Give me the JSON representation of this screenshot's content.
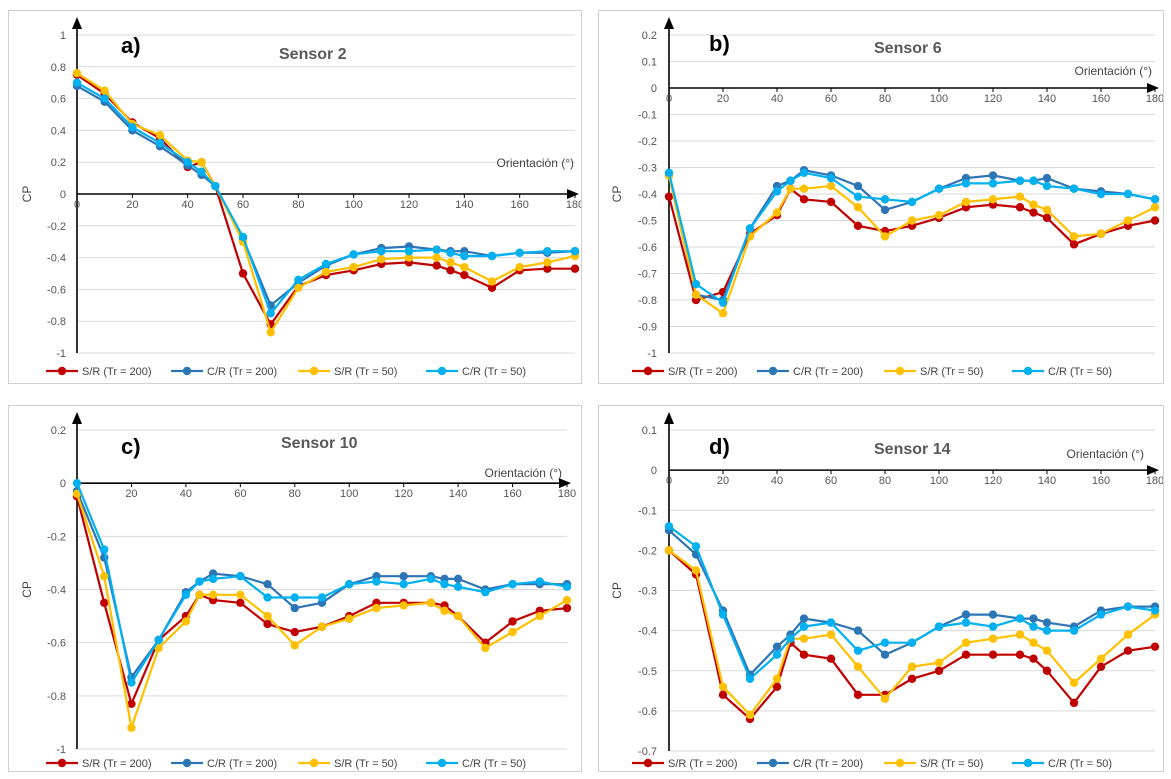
{
  "colors": {
    "S/R (Tr = 200)": "#C00000",
    "C/R (Tr = 200)": "#2E75B6",
    "S/R (Tr = 50)": "#FFC000",
    "C/R (Tr = 50)": "#00B0F0"
  },
  "chart_data": [
    {
      "type": "line",
      "panel_label": "a)",
      "title": "Sensor 2",
      "xlabel": "Orientación (°)",
      "ylabel": "CP",
      "xlim": [
        0,
        180
      ],
      "ylim": [
        -1,
        1
      ],
      "x_ticks": [
        0,
        20,
        40,
        60,
        80,
        100,
        120,
        140,
        160,
        180
      ],
      "y_ticks": [
        -1,
        -0.8,
        -0.6,
        -0.4,
        -0.2,
        0,
        0.2,
        0.4,
        0.6,
        0.8,
        1
      ],
      "y_tick_labels": [
        "-1",
        "-0.8",
        "-0.6",
        "-0.4",
        "-0.2",
        "0",
        "0.2",
        "0.4",
        "0.6",
        "0.8",
        "1"
      ],
      "grid": "horizontal",
      "legend": "bottom",
      "x": [
        0,
        10,
        20,
        30,
        40,
        45,
        50,
        60,
        70,
        80,
        90,
        100,
        110,
        120,
        130,
        135,
        140,
        150,
        160,
        170,
        180
      ],
      "series": [
        {
          "name": "S/R (Tr = 200)",
          "values": [
            0.75,
            0.63,
            0.45,
            0.35,
            0.17,
            0.2,
            0.05,
            -0.5,
            -0.82,
            -0.58,
            -0.51,
            -0.48,
            -0.44,
            -0.43,
            -0.45,
            -0.48,
            -0.51,
            -0.59,
            -0.48,
            -0.47,
            -0.47
          ]
        },
        {
          "name": "C/R (Tr = 200)",
          "values": [
            0.68,
            0.58,
            0.4,
            0.3,
            0.18,
            0.12,
            0.05,
            -0.28,
            -0.7,
            -0.56,
            -0.45,
            -0.38,
            -0.34,
            -0.33,
            -0.35,
            -0.36,
            -0.36,
            -0.39,
            -0.37,
            -0.37,
            -0.36
          ]
        },
        {
          "name": "S/R (Tr = 50)",
          "values": [
            0.76,
            0.65,
            0.44,
            0.37,
            0.21,
            0.2,
            0.05,
            -0.3,
            -0.87,
            -0.59,
            -0.49,
            -0.46,
            -0.41,
            -0.4,
            -0.4,
            -0.43,
            -0.46,
            -0.55,
            -0.46,
            -0.43,
            -0.39
          ]
        },
        {
          "name": "C/R (Tr = 50)",
          "values": [
            0.7,
            0.6,
            0.42,
            0.32,
            0.2,
            0.14,
            0.05,
            -0.27,
            -0.75,
            -0.54,
            -0.44,
            -0.38,
            -0.36,
            -0.36,
            -0.35,
            -0.37,
            -0.39,
            -0.39,
            -0.37,
            -0.36,
            -0.36
          ]
        }
      ]
    },
    {
      "type": "line",
      "panel_label": "b)",
      "title": "Sensor 6",
      "xlabel": "Orientación (°)",
      "ylabel": "CP",
      "xlim": [
        0,
        180
      ],
      "ylim": [
        -1,
        0.2
      ],
      "x_ticks": [
        0,
        20,
        40,
        60,
        80,
        100,
        120,
        140,
        160,
        180
      ],
      "y_ticks": [
        -1,
        -0.9,
        -0.8,
        -0.7,
        -0.6,
        -0.5,
        -0.4,
        -0.3,
        -0.2,
        -0.1,
        0,
        0.1,
        0.2
      ],
      "y_tick_labels": [
        "-1",
        "-0.9",
        "-0.8",
        "-0.7",
        "-0.6",
        "-0.5",
        "-0.4",
        "-0.3",
        "-0.2",
        "-0.1",
        "0",
        "0.1",
        "0.2"
      ],
      "grid": "horizontal",
      "legend": "bottom",
      "x": [
        0,
        10,
        20,
        30,
        40,
        45,
        50,
        60,
        70,
        80,
        90,
        100,
        110,
        120,
        130,
        135,
        140,
        150,
        160,
        170,
        180
      ],
      "series": [
        {
          "name": "S/R (Tr = 200)",
          "values": [
            -0.41,
            -0.8,
            -0.77,
            -0.55,
            -0.48,
            -0.38,
            -0.42,
            -0.43,
            -0.52,
            -0.54,
            -0.52,
            -0.49,
            -0.45,
            -0.44,
            -0.45,
            -0.47,
            -0.49,
            -0.59,
            -0.55,
            -0.52,
            -0.5
          ]
        },
        {
          "name": "C/R (Tr = 200)",
          "values": [
            -0.33,
            -0.78,
            -0.8,
            -0.53,
            -0.37,
            -0.35,
            -0.31,
            -0.33,
            -0.37,
            -0.46,
            -0.43,
            -0.38,
            -0.34,
            -0.33,
            -0.35,
            -0.35,
            -0.34,
            -0.38,
            -0.39,
            -0.4,
            -0.42
          ]
        },
        {
          "name": "S/R (Tr = 50)",
          "values": [
            -0.33,
            -0.78,
            -0.85,
            -0.56,
            -0.47,
            -0.38,
            -0.38,
            -0.37,
            -0.45,
            -0.56,
            -0.5,
            -0.48,
            -0.43,
            -0.42,
            -0.41,
            -0.44,
            -0.46,
            -0.56,
            -0.55,
            -0.5,
            -0.45
          ]
        },
        {
          "name": "C/R (Tr = 50)",
          "values": [
            -0.32,
            -0.74,
            -0.81,
            -0.53,
            -0.39,
            -0.35,
            -0.32,
            -0.34,
            -0.41,
            -0.42,
            -0.43,
            -0.38,
            -0.36,
            -0.36,
            -0.35,
            -0.35,
            -0.37,
            -0.38,
            -0.4,
            -0.4,
            -0.42
          ]
        }
      ]
    },
    {
      "type": "line",
      "panel_label": "c)",
      "title": "Sensor 10",
      "xlabel": "Orientación (°)",
      "ylabel": "CP",
      "xlim": [
        0,
        180
      ],
      "ylim": [
        -1,
        0.2
      ],
      "x_ticks": [
        0,
        20,
        40,
        60,
        80,
        100,
        120,
        140,
        160,
        180
      ],
      "y_ticks": [
        -1,
        -0.8,
        -0.6,
        -0.4,
        -0.2,
        0,
        0.2
      ],
      "y_tick_labels": [
        "-1",
        "-0.8",
        "-0.6",
        "-0.4",
        "-0.2",
        "0",
        "0.2"
      ],
      "grid": "horizontal",
      "legend": "bottom",
      "x": [
        0,
        10,
        20,
        30,
        40,
        45,
        50,
        60,
        70,
        80,
        90,
        100,
        110,
        120,
        130,
        135,
        140,
        150,
        160,
        170,
        180
      ],
      "series": [
        {
          "name": "S/R (Tr = 200)",
          "values": [
            -0.05,
            -0.45,
            -0.83,
            -0.59,
            -0.5,
            -0.42,
            -0.44,
            -0.45,
            -0.53,
            -0.56,
            -0.54,
            -0.5,
            -0.45,
            -0.45,
            -0.45,
            -0.46,
            -0.5,
            -0.6,
            -0.52,
            -0.48,
            -0.47
          ]
        },
        {
          "name": "C/R (Tr = 200)",
          "values": [
            -0.03,
            -0.28,
            -0.73,
            -0.59,
            -0.41,
            -0.37,
            -0.34,
            -0.35,
            -0.38,
            -0.47,
            -0.45,
            -0.38,
            -0.35,
            -0.35,
            -0.35,
            -0.36,
            -0.36,
            -0.4,
            -0.38,
            -0.38,
            -0.38
          ]
        },
        {
          "name": "S/R (Tr = 50)",
          "values": [
            -0.04,
            -0.35,
            -0.92,
            -0.62,
            -0.52,
            -0.42,
            -0.42,
            -0.42,
            -0.5,
            -0.61,
            -0.54,
            -0.51,
            -0.47,
            -0.46,
            -0.45,
            -0.48,
            -0.5,
            -0.62,
            -0.56,
            -0.5,
            -0.44
          ]
        },
        {
          "name": "C/R (Tr = 50)",
          "values": [
            0.0,
            -0.25,
            -0.75,
            -0.59,
            -0.42,
            -0.37,
            -0.36,
            -0.35,
            -0.43,
            -0.43,
            -0.43,
            -0.38,
            -0.37,
            -0.38,
            -0.36,
            -0.38,
            -0.39,
            -0.41,
            -0.38,
            -0.37,
            -0.39
          ]
        }
      ]
    },
    {
      "type": "line",
      "panel_label": "d)",
      "title": "Sensor 14",
      "xlabel": "Orientación (°)",
      "ylabel": "CP",
      "xlim": [
        0,
        180
      ],
      "ylim": [
        -0.7,
        0.1
      ],
      "x_ticks": [
        0,
        20,
        40,
        60,
        80,
        100,
        120,
        140,
        160,
        180
      ],
      "y_ticks": [
        -0.7,
        -0.6,
        -0.5,
        -0.4,
        -0.3,
        -0.2,
        -0.1,
        0,
        0.1
      ],
      "y_tick_labels": [
        "-0.7",
        "-0.6",
        "-0.5",
        "-0.4",
        "-0.3",
        "-0.2",
        "-0.1",
        "0",
        "0.1"
      ],
      "grid": "horizontal",
      "legend": "bottom",
      "x": [
        0,
        10,
        20,
        30,
        40,
        45,
        50,
        60,
        70,
        80,
        90,
        100,
        110,
        120,
        130,
        135,
        140,
        150,
        160,
        170,
        180
      ],
      "series": [
        {
          "name": "S/R (Tr = 200)",
          "values": [
            -0.2,
            -0.26,
            -0.56,
            -0.62,
            -0.54,
            -0.43,
            -0.46,
            -0.47,
            -0.56,
            -0.56,
            -0.52,
            -0.5,
            -0.46,
            -0.46,
            -0.46,
            -0.47,
            -0.5,
            -0.58,
            -0.49,
            -0.45,
            -0.44
          ]
        },
        {
          "name": "C/R (Tr = 200)",
          "values": [
            -0.15,
            -0.21,
            -0.35,
            -0.51,
            -0.44,
            -0.41,
            -0.37,
            -0.38,
            -0.4,
            -0.46,
            -0.43,
            -0.39,
            -0.36,
            -0.36,
            -0.37,
            -0.37,
            -0.38,
            -0.39,
            -0.35,
            -0.34,
            -0.34
          ]
        },
        {
          "name": "S/R (Tr = 50)",
          "values": [
            -0.2,
            -0.25,
            -0.54,
            -0.61,
            -0.52,
            -0.42,
            -0.42,
            -0.41,
            -0.49,
            -0.57,
            -0.49,
            -0.48,
            -0.43,
            -0.42,
            -0.41,
            -0.43,
            -0.45,
            -0.53,
            -0.47,
            -0.41,
            -0.36
          ]
        },
        {
          "name": "C/R (Tr = 50)",
          "values": [
            -0.14,
            -0.19,
            -0.36,
            -0.52,
            -0.46,
            -0.42,
            -0.39,
            -0.38,
            -0.45,
            -0.43,
            -0.43,
            -0.39,
            -0.38,
            -0.39,
            -0.37,
            -0.39,
            -0.4,
            -0.4,
            -0.36,
            -0.34,
            -0.35
          ]
        }
      ]
    }
  ]
}
